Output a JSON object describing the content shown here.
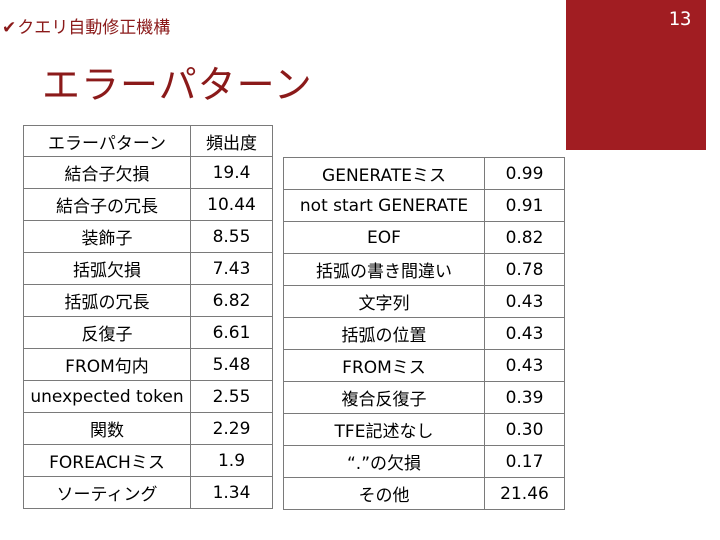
{
  "header": {
    "check_symbol": "✔",
    "label": "クエリ自動修正機構"
  },
  "slide": {
    "title": "エラーパターン",
    "page_number": "13"
  },
  "colors": {
    "accent": "#8b1a1a",
    "page_box": "#a11d22"
  },
  "table_left": {
    "headers": [
      "エラーパターン",
      "頻出度"
    ],
    "rows": [
      [
        "結合子欠損",
        "19.4"
      ],
      [
        "結合子の冗長",
        "10.44"
      ],
      [
        "装飾子",
        "8.55"
      ],
      [
        "括弧欠損",
        "7.43"
      ],
      [
        "括弧の冗長",
        "6.82"
      ],
      [
        "反復子",
        "6.61"
      ],
      [
        "FROM句内",
        "5.48"
      ],
      [
        "unexpected token",
        "2.55"
      ],
      [
        "関数",
        "2.29"
      ],
      [
        "FOREACHミス",
        "1.9"
      ],
      [
        "ソーティング",
        "1.34"
      ]
    ]
  },
  "table_right": {
    "rows": [
      [
        "GENERATEミス",
        "0.99"
      ],
      [
        "not start GENERATE",
        "0.91"
      ],
      [
        "EOF",
        "0.82"
      ],
      [
        "括弧の書き間違い",
        "0.78"
      ],
      [
        "文字列",
        "0.43"
      ],
      [
        "括弧の位置",
        "0.43"
      ],
      [
        "FROMミス",
        "0.43"
      ],
      [
        "複合反復子",
        "0.39"
      ],
      [
        "TFE記述なし",
        "0.30"
      ],
      [
        "“.”の欠損",
        "0.17"
      ],
      [
        "その他",
        "21.46"
      ]
    ]
  }
}
